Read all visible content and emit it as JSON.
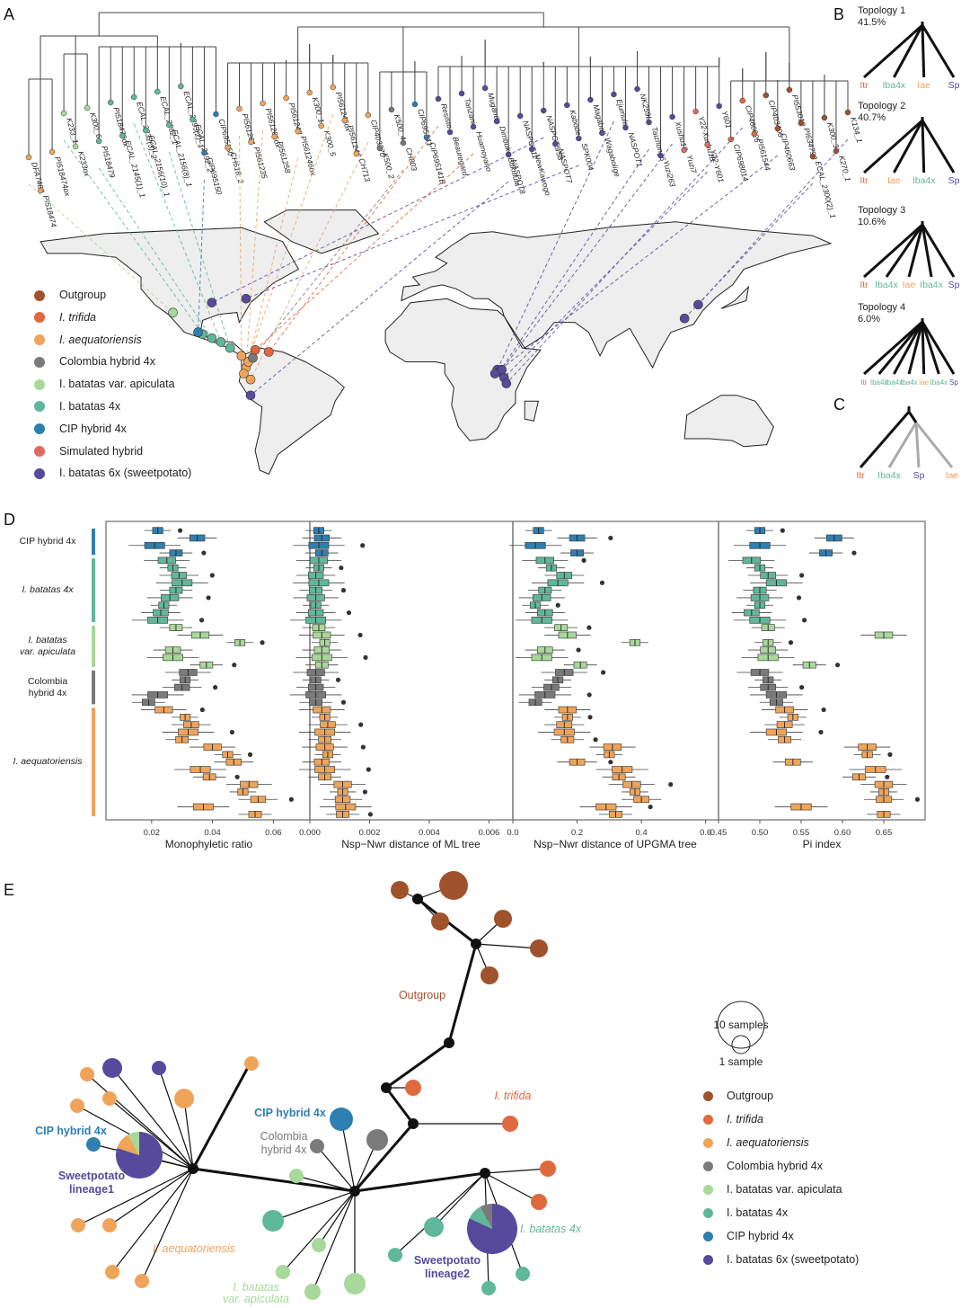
{
  "panels": {
    "a": "A",
    "b": "B",
    "c": "C",
    "d": "D",
    "e": "E"
  },
  "colors": {
    "outgroup": "#a0522d",
    "trifida": "#e0693e",
    "aequatoriensis": "#f0a45a",
    "colombia": "#7a7a7a",
    "apiculata": "#a8d89a",
    "batatas4x": "#5fb89a",
    "cip": "#2f7fb0",
    "simulated": "#e06b63",
    "sweetpotato": "#574a9c",
    "map_land": "#eeeeee",
    "box_border": "#888888"
  },
  "legend_a": [
    {
      "label": "Outgroup",
      "italic": false,
      "color": "#a0522d"
    },
    {
      "label": "I. trifida",
      "italic": true,
      "color": "#e0693e"
    },
    {
      "label": "I. aequatoriensis",
      "italic": true,
      "color": "#f0a45a"
    },
    {
      "label": "Colombia hybrid 4x",
      "italic": false,
      "color": "#7a7a7a"
    },
    {
      "label": "I. batatas var. apiculata",
      "italic": false,
      "color": "#a8d89a"
    },
    {
      "label": "I. batatas 4x",
      "italic": false,
      "color": "#5fb89a"
    },
    {
      "label": "CIP hybrid 4x",
      "italic": false,
      "color": "#2f7fb0"
    },
    {
      "label": "Simulated hybrid",
      "italic": false,
      "color": "#e06b63"
    },
    {
      "label": "I. batatas 6x (sweetpotato)",
      "italic": false,
      "color": "#574a9c"
    }
  ],
  "tree_tips": [
    "DFA7480",
    "PI518474",
    "PI518474ox",
    "K233_1",
    "K233ox",
    "K300_6",
    "PI518479",
    "PI518479ox",
    "ECAL_2145(1)_1",
    "ECAL_2232(3)_2",
    "ECAL_2156(10)_1",
    "ECAL_2262_1",
    "ECAL_2156(8)_1",
    "ECAL_2293(2)_1",
    "ECAL_2192_2",
    "CIP695150",
    "CIP695150",
    "CH618_2",
    "PI561261",
    "PI561235",
    "PI561265ox",
    "PI561258",
    "PI561248",
    "PI561246ox",
    "K300_1",
    "K300_5",
    "PI561246ox",
    "PI561247",
    "CH713",
    "CIP403270",
    "K500_2",
    "K500_4",
    "CH803",
    "CIP695141",
    "CIP695141B",
    "Resisto",
    "Beauregard",
    "Tanzania",
    "Huamoyano",
    "Mugande",
    "Dimbuka-Bukulula",
    "NASPOT8",
    "NASPOT11",
    "NewKawogo",
    "NASPOT5/58",
    "NASPOT7",
    "Kabode",
    "SPK004",
    "Magabali",
    "Wagabolige",
    "Ejumula",
    "NASPOT1",
    "NK259L",
    "Taizhong6",
    "Yuzi263",
    "Xushu18",
    "Yuzi7",
    "Y22-Xushu18",
    "Y22-Y601",
    "Y601",
    "CIP698014",
    "CIP460026",
    "PI561544",
    "CIP403406",
    "CIP460663",
    "PI553012",
    "PI634798",
    "ECAL_2300(2)_1",
    "K300_3",
    "K270_1",
    "K134_1"
  ],
  "tree_tip_colors": [
    "aequatoriensis",
    "aequatoriensis",
    "aequatoriensis",
    "apiculata",
    "apiculata",
    "apiculata",
    "batatas4x",
    "batatas4x",
    "batatas4x",
    "batatas4x",
    "batatas4x",
    "batatas4x",
    "batatas4x",
    "batatas4x",
    "batatas4x",
    "cip",
    "cip",
    "aequatoriensis",
    "aequatoriensis",
    "aequatoriensis",
    "aequatoriensis",
    "aequatoriensis",
    "aequatoriensis",
    "aequatoriensis",
    "aequatoriensis",
    "aequatoriensis",
    "aequatoriensis",
    "aequatoriensis",
    "aequatoriensis",
    "aequatoriensis",
    "colombia",
    "colombia",
    "colombia",
    "cip",
    "cip",
    "sweetpotato",
    "sweetpotato",
    "sweetpotato",
    "sweetpotato",
    "sweetpotato",
    "sweetpotato",
    "sweetpotato",
    "sweetpotato",
    "sweetpotato",
    "sweetpotato",
    "sweetpotato",
    "sweetpotato",
    "sweetpotato",
    "sweetpotato",
    "sweetpotato",
    "sweetpotato",
    "sweetpotato",
    "sweetpotato",
    "sweetpotato",
    "sweetpotato",
    "sweetpotato",
    "simulated",
    "simulated",
    "simulated",
    "sweetpotato",
    "trifida",
    "trifida",
    "trifida",
    "outgroup",
    "outgroup",
    "outgroup",
    "outgroup",
    "outgroup",
    "outgroup",
    "outgroup",
    "outgroup"
  ],
  "topologies": [
    {
      "title": "Topology 1",
      "pct": "41.5%",
      "tips": [
        {
          "t": "Itr",
          "c": "trifida"
        },
        {
          "t": "Iba4x",
          "c": "batatas4x"
        },
        {
          "t": "Iae",
          "c": "aequatoriensis"
        },
        {
          "t": "Sp",
          "c": "sweetpotato"
        }
      ]
    },
    {
      "title": "Topology 2",
      "pct": "40.7%",
      "tips": [
        {
          "t": "Itr",
          "c": "trifida"
        },
        {
          "t": "Iae",
          "c": "aequatoriensis"
        },
        {
          "t": "Iba4x",
          "c": "batatas4x"
        },
        {
          "t": "Sp",
          "c": "sweetpotato"
        }
      ]
    },
    {
      "title": "Topology 3",
      "pct": "10.6%",
      "tips": [
        {
          "t": "Itr",
          "c": "trifida"
        },
        {
          "t": "Iba4x",
          "c": "batatas4x"
        },
        {
          "t": "Iae",
          "c": "aequatoriensis"
        },
        {
          "t": "Iba4x",
          "c": "batatas4x"
        },
        {
          "t": "Sp",
          "c": "sweetpotato"
        }
      ]
    },
    {
      "title": "Topology 4",
      "pct": "6.0%",
      "tips": [
        {
          "t": "Itr",
          "c": "trifida"
        },
        {
          "t": "Iba4x",
          "c": "batatas4x"
        },
        {
          "t": "Iba4x",
          "c": "batatas4x"
        },
        {
          "t": "Iba4x",
          "c": "batatas4x"
        },
        {
          "t": "Iae",
          "c": "aequatoriensis"
        },
        {
          "t": "Iba4x",
          "c": "batatas4x"
        },
        {
          "t": "Sp",
          "c": "sweetpotato"
        }
      ]
    }
  ],
  "topology_c": {
    "tips": [
      {
        "t": "Itr",
        "c": "trifida"
      },
      {
        "t": "Iba4x",
        "c": "batatas4x"
      },
      {
        "t": "Sp",
        "c": "sweetpotato"
      },
      {
        "t": "Iae",
        "c": "aequatoriensis"
      }
    ]
  },
  "chart_data": [
    {
      "type": "box",
      "title": "",
      "xlabel": "Monophyletic ratio",
      "xlim": [
        0.005,
        0.072
      ],
      "ticks": [
        "0.02",
        "0.04",
        "0.06"
      ],
      "tick_values": [
        0.02,
        0.04,
        0.06
      ]
    },
    {
      "type": "box",
      "title": "",
      "xlabel": "Nsp−Nwr distance of ML tree",
      "xlim": [
        0.0,
        0.0068
      ],
      "ticks": [
        "0.000",
        "0.002",
        "0.004",
        "0.006"
      ],
      "tick_values": [
        0.0,
        0.002,
        0.004,
        0.006
      ]
    },
    {
      "type": "box",
      "title": "",
      "xlabel": "Nsp−Nwr distance of UPGMA tree",
      "xlim": [
        0.0,
        0.64
      ],
      "ticks": [
        "0.0",
        "0.2",
        "0.4",
        "0.6"
      ],
      "tick_values": [
        0.0,
        0.2,
        0.4,
        0.6
      ]
    },
    {
      "type": "box",
      "title": "",
      "xlabel": "Pi index",
      "xlim": [
        0.45,
        0.7
      ],
      "ticks": [
        "0.45",
        "0.50",
        "0.55",
        "0.60",
        "0.65"
      ],
      "tick_values": [
        0.45,
        0.5,
        0.55,
        0.6,
        0.65
      ]
    }
  ],
  "box_groups": [
    {
      "label_lines": [
        "CIP hybrid 4x"
      ],
      "italic": false,
      "color": "cip",
      "count": 4
    },
    {
      "label_lines": [
        "I. batatas 4x"
      ],
      "italic": true,
      "color": "batatas4x",
      "count": 9
    },
    {
      "label_lines": [
        "I. batatas",
        "var. apiculata"
      ],
      "italic": true,
      "color": "apiculata",
      "count": 6
    },
    {
      "label_lines": [
        "Colombia",
        "hybrid 4x"
      ],
      "italic": false,
      "color": "colombia",
      "count": 5
    },
    {
      "label_lines": [
        "I. aequatoriensis"
      ],
      "italic": true,
      "color": "aequatoriensis",
      "count": 15
    }
  ],
  "box_medians": [
    [
      0.022,
      0.035,
      0.021,
      0.028,
      0.025,
      0.027,
      0.029,
      0.03,
      0.028,
      0.026,
      0.024,
      0.023,
      0.022,
      0.028,
      0.036,
      0.049,
      0.027,
      0.027,
      0.038,
      0.032,
      0.031,
      0.03,
      0.022,
      0.019,
      0.024,
      0.031,
      0.033,
      0.032,
      0.03,
      0.04,
      0.045,
      0.047,
      0.036,
      0.039,
      0.052,
      0.05,
      0.055,
      0.037,
      0.054
    ],
    [
      0.0003,
      0.0004,
      0.0003,
      0.0004,
      0.0003,
      0.0003,
      0.0002,
      0.0003,
      0.0002,
      0.0002,
      0.0002,
      0.0002,
      0.0002,
      0.0003,
      0.0004,
      0.0005,
      0.0004,
      0.0004,
      0.0004,
      0.0002,
      0.0002,
      0.0002,
      0.0002,
      0.0002,
      0.0004,
      0.0005,
      0.0006,
      0.0005,
      0.0005,
      0.0005,
      0.0006,
      0.0004,
      0.0005,
      0.0005,
      0.0011,
      0.0011,
      0.0011,
      0.0012,
      0.0011
    ],
    [
      0.08,
      0.2,
      0.07,
      0.2,
      0.1,
      0.12,
      0.16,
      0.14,
      0.1,
      0.09,
      0.07,
      0.1,
      0.09,
      0.15,
      0.17,
      0.38,
      0.1,
      0.09,
      0.21,
      0.16,
      0.14,
      0.12,
      0.1,
      0.07,
      0.17,
      0.17,
      0.16,
      0.16,
      0.17,
      0.31,
      0.3,
      0.2,
      0.34,
      0.33,
      0.37,
      0.38,
      0.4,
      0.29,
      0.32
    ],
    [
      0.5,
      0.59,
      0.5,
      0.58,
      0.49,
      0.5,
      0.51,
      0.52,
      0.5,
      0.5,
      0.5,
      0.49,
      0.5,
      0.51,
      0.65,
      0.51,
      0.51,
      0.51,
      0.56,
      0.5,
      0.51,
      0.51,
      0.52,
      0.52,
      0.53,
      0.54,
      0.53,
      0.52,
      0.53,
      0.63,
      0.63,
      0.54,
      0.64,
      0.62,
      0.65,
      0.65,
      0.65,
      0.55,
      0.65
    ]
  ],
  "map_samples": [
    {
      "lon": -110,
      "lat": 30,
      "c": "apiculata"
    },
    {
      "lon": -97,
      "lat": 19,
      "c": "batatas4x"
    },
    {
      "lon": -93,
      "lat": 17,
      "c": "batatas4x"
    },
    {
      "lon": -89,
      "lat": 15,
      "c": "batatas4x"
    },
    {
      "lon": -85,
      "lat": 12,
      "c": "batatas4x"
    },
    {
      "lon": -99,
      "lat": 20,
      "c": "cip"
    },
    {
      "lon": -80,
      "lat": 8,
      "c": "aequatoriensis"
    },
    {
      "lon": -78,
      "lat": 2,
      "c": "aequatoriensis"
    },
    {
      "lon": -77,
      "lat": 5,
      "c": "aequatoriensis"
    },
    {
      "lon": -79,
      "lat": -1,
      "c": "aequatoriensis"
    },
    {
      "lon": -76,
      "lat": -4,
      "c": "aequatoriensis"
    },
    {
      "lon": -75,
      "lat": 7,
      "c": "colombia"
    },
    {
      "lon": -68,
      "lat": 10,
      "c": "trifida"
    },
    {
      "lon": -74,
      "lat": 11,
      "c": "trifida"
    },
    {
      "lon": -76,
      "lat": -12,
      "c": "sweetpotato"
    },
    {
      "lon": -93,
      "lat": 35,
      "c": "sweetpotato"
    },
    {
      "lon": -78,
      "lat": 37,
      "c": "sweetpotato"
    },
    {
      "lon": 32,
      "lat": 1,
      "c": "sweetpotato"
    },
    {
      "lon": 33,
      "lat": 0,
      "c": "sweetpotato"
    },
    {
      "lon": 34,
      "lat": 1,
      "c": "sweetpotato"
    },
    {
      "lon": 35,
      "lat": -3,
      "c": "sweetpotato"
    },
    {
      "lon": 36,
      "lat": -6,
      "c": "sweetpotato"
    },
    {
      "lon": 31,
      "lat": -1,
      "c": "sweetpotato"
    },
    {
      "lon": 114,
      "lat": 27,
      "c": "sweetpotato"
    },
    {
      "lon": 120,
      "lat": 34,
      "c": "sweetpotato"
    }
  ],
  "network": {
    "size_legend": {
      "big": "10 samples",
      "small": "1 sample"
    },
    "labels": {
      "outgroup": "Outgroup",
      "trifida": "I. trifida",
      "cip_left": "CIP hybrid 4x",
      "cip_mid": "CIP hybrid 4x",
      "colombia_l1": "Colombia",
      "colombia_l2": "hybrid 4x",
      "sp1_l1": "Sweetpotato",
      "sp1_l2": "lineage1",
      "aeq": "I. aequatoriensis",
      "api_l1": "I. batatas",
      "api_l2": "var. apiculata",
      "sp2_l1": "Sweetpotato",
      "sp2_l2": "lineage2",
      "b4x": "I. batatas 4x"
    },
    "legend": [
      {
        "label": "Outgroup",
        "italic": false,
        "color": "#a0522d"
      },
      {
        "label": "I. trifida",
        "italic": true,
        "color": "#e0693e"
      },
      {
        "label": "I. aequatoriensis",
        "italic": true,
        "color": "#f0a45a"
      },
      {
        "label": "Colombia hybrid 4x",
        "italic": false,
        "color": "#7a7a7a"
      },
      {
        "label": "I. batatas var. apiculata",
        "italic": false,
        "color": "#a8d89a"
      },
      {
        "label": "I. batatas 4x",
        "italic": false,
        "color": "#5fb89a"
      },
      {
        "label": "CIP hybrid 4x",
        "italic": false,
        "color": "#2f7fb0"
      },
      {
        "label": "I. batatas 6x (sweetpotato)",
        "italic": false,
        "color": "#574a9c"
      }
    ]
  }
}
